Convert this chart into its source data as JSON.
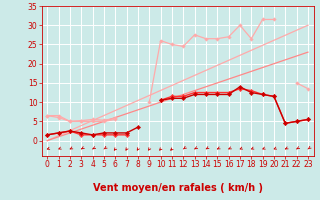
{
  "background_color": "#cceae8",
  "grid_color": "#ffffff",
  "xlabel": "Vent moyen/en rafales ( km/h )",
  "x_values": [
    0,
    1,
    2,
    3,
    4,
    5,
    6,
    7,
    8,
    9,
    10,
    11,
    12,
    13,
    14,
    15,
    16,
    17,
    18,
    19,
    20,
    21,
    22,
    23
  ],
  "ylim": [
    -4,
    35
  ],
  "xlim": [
    -0.5,
    23.5
  ],
  "yticks": [
    0,
    5,
    10,
    15,
    20,
    25,
    30,
    35
  ],
  "yticklabels": [
    "0",
    "5",
    "10",
    "15",
    "20",
    "25",
    "30",
    "35"
  ],
  "xticks": [
    0,
    1,
    2,
    3,
    4,
    5,
    6,
    7,
    8,
    9,
    10,
    11,
    12,
    13,
    14,
    15,
    16,
    17,
    18,
    19,
    20,
    21,
    22,
    23
  ],
  "line_diagonal1_y": [
    0.0,
    1.304,
    2.609,
    3.913,
    5.217,
    6.522,
    7.826,
    9.13,
    10.435,
    11.739,
    13.043,
    14.348,
    15.652,
    16.957,
    18.261,
    19.565,
    20.87,
    22.174,
    23.478,
    24.783,
    26.087,
    27.391,
    28.696,
    30.0
  ],
  "line_diagonal2_y": [
    0.0,
    1.0,
    2.0,
    3.0,
    4.0,
    5.0,
    6.0,
    7.0,
    8.0,
    9.0,
    10.0,
    11.0,
    12.0,
    13.0,
    14.0,
    15.0,
    16.0,
    17.0,
    18.0,
    19.0,
    20.0,
    21.0,
    22.0,
    23.0
  ],
  "line_pink_wavy_y": [
    6.5,
    6.5,
    5.0,
    5.2,
    5.5,
    5.3,
    5.8,
    null,
    null,
    10.0,
    26.0,
    25.0,
    24.5,
    27.5,
    26.5,
    26.5,
    27.0,
    30.0,
    26.5,
    31.5,
    31.5,
    null,
    15.0,
    13.5
  ],
  "line_pink_lower_y": [
    6.5,
    6.0,
    5.0,
    5.0,
    5.0,
    5.0,
    5.5,
    null,
    null,
    null,
    null,
    null,
    null,
    null,
    null,
    null,
    null,
    null,
    null,
    null,
    null,
    null,
    null,
    null
  ],
  "line_red1_y": [
    1.5,
    2.0,
    2.5,
    1.5,
    1.5,
    1.5,
    1.5,
    1.5,
    null,
    null,
    10.5,
    11.5,
    11.5,
    12.5,
    12.5,
    12.5,
    12.5,
    13.5,
    13.0,
    12.0,
    11.5,
    4.5,
    5.0,
    5.5
  ],
  "line_red2_y": [
    1.5,
    2.0,
    2.5,
    2.0,
    1.5,
    2.0,
    2.0,
    2.0,
    3.5,
    null,
    10.5,
    11.0,
    11.0,
    12.0,
    12.0,
    12.0,
    12.0,
    14.0,
    12.5,
    12.0,
    11.5,
    4.5,
    5.0,
    5.5
  ],
  "arrow_angles_deg": [
    230,
    225,
    220,
    215,
    215,
    210,
    200,
    195,
    195,
    195,
    200,
    205,
    210,
    215,
    215,
    220,
    220,
    225,
    225,
    225,
    225,
    220,
    215,
    210
  ],
  "color_light_pink": "#ffaaaa",
  "color_mid_pink": "#ff8888",
  "color_red": "#ff3333",
  "color_dark_red": "#cc0000",
  "tick_fontsize": 5.5,
  "label_fontsize": 7
}
